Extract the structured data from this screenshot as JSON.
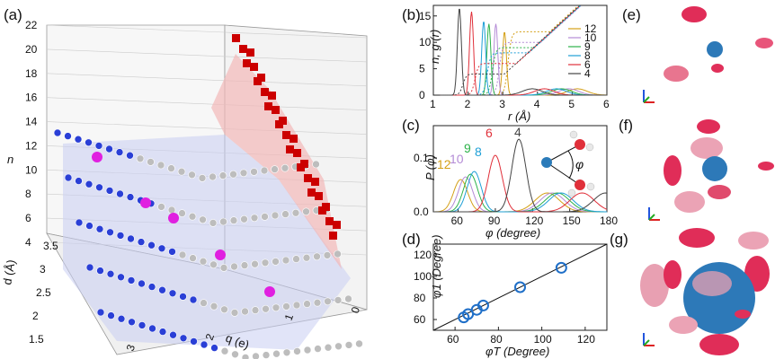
{
  "panels": {
    "a": {
      "label": "(a)"
    },
    "b": {
      "label": "(b)"
    },
    "c": {
      "label": "(c)"
    },
    "d": {
      "label": "(d)"
    },
    "e": {
      "label": "(e)"
    },
    "f": {
      "label": "(f)"
    },
    "g": {
      "label": "(g)"
    }
  },
  "chart_data": [
    {
      "id": "a",
      "type": "scatter",
      "zlabel": "n",
      "ylabel": "d (Å)",
      "xlabel": "q (e)",
      "z_ticks": [
        "4",
        "6",
        "8",
        "10",
        "12",
        "14",
        "16",
        "18",
        "20",
        "22"
      ],
      "y_ticks": [
        "1.5",
        "2",
        "2.5",
        "3",
        "3.5"
      ],
      "x_ticks": [
        "3",
        "2",
        "1",
        "0"
      ],
      "zlim": [
        4,
        22
      ],
      "ylim": [
        1.5,
        3.5
      ],
      "xlim": [
        0,
        3.5
      ],
      "colors": {
        "red_cubes": "#cc0000",
        "blue_spheres": "#2a3fd6",
        "gray_spheres": "#bdbdbd",
        "magenta_spheres": "#e020e0",
        "surface": "#c8cdf2"
      }
    },
    {
      "id": "b",
      "type": "line",
      "xlabel": "r (Å)",
      "ylabel": "n, g (r)",
      "xlim": [
        1,
        6
      ],
      "ylim": [
        0,
        17
      ],
      "x_ticks": [
        "1",
        "2",
        "3",
        "4",
        "5",
        "6"
      ],
      "y_ticks": [
        "0",
        "5",
        "10",
        "15"
      ],
      "series": [
        {
          "name": "12",
          "color": "#d4a017",
          "peak": 3.05,
          "height": 12
        },
        {
          "name": "10",
          "color": "#b48bd6",
          "peak": 2.8,
          "height": 13.5
        },
        {
          "name": "9",
          "color": "#2db24a",
          "peak": 2.6,
          "height": 13.5
        },
        {
          "name": "8",
          "color": "#1e9fd6",
          "peak": 2.45,
          "height": 14
        },
        {
          "name": "6",
          "color": "#e0303a",
          "peak": 2.1,
          "height": 15.8
        },
        {
          "name": "4",
          "color": "#444444",
          "peak": 1.75,
          "height": 16.5
        }
      ]
    },
    {
      "id": "c",
      "type": "line",
      "xlabel": "φ (degree)",
      "ylabel": "P (φ)",
      "xlim": [
        40,
        180
      ],
      "ylim": [
        0,
        0.16
      ],
      "x_ticks": [
        "60",
        "90",
        "120",
        "150",
        "180"
      ],
      "y_ticks": [
        "0.0",
        "0.1"
      ],
      "angle_symbol": "φ",
      "series": [
        {
          "name": "12",
          "color": "#d4a017",
          "peak": 62,
          "height": 0.06
        },
        {
          "name": "10",
          "color": "#b48bd6",
          "peak": 66,
          "height": 0.065
        },
        {
          "name": "9",
          "color": "#2db24a",
          "peak": 70,
          "height": 0.07
        },
        {
          "name": "8",
          "color": "#1e9fd6",
          "peak": 73,
          "height": 0.075
        },
        {
          "name": "6",
          "color": "#e0303a",
          "peak": 90,
          "height": 0.105
        },
        {
          "name": "4",
          "color": "#444444",
          "peak": 109,
          "height": 0.135
        }
      ]
    },
    {
      "id": "d",
      "type": "scatter",
      "xlabel": "φT (Degree)",
      "ylabel": "φ1 (Degree)",
      "xlim": [
        50,
        130
      ],
      "ylim": [
        50,
        130
      ],
      "x_ticks": [
        "60",
        "80",
        "100",
        "120"
      ],
      "y_ticks": [
        "60",
        "80",
        "100",
        "120"
      ],
      "points": [
        [
          64,
          62
        ],
        [
          66,
          65
        ],
        [
          70,
          69
        ],
        [
          73,
          73
        ],
        [
          90,
          90
        ],
        [
          109,
          108
        ]
      ]
    }
  ]
}
